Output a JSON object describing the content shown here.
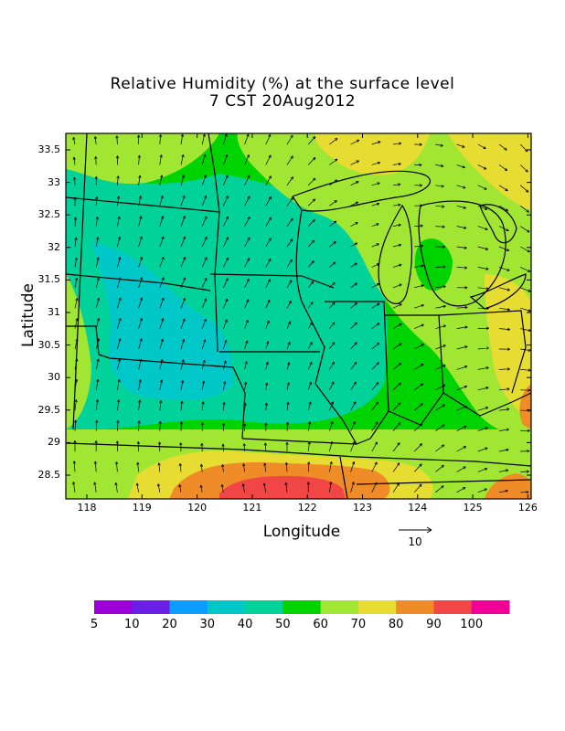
{
  "title": {
    "line1": "Relative Humidity (%) at the surface level",
    "line2": "7 CST 20Aug2012"
  },
  "axes": {
    "xlabel": "Longitude",
    "ylabel": "Latitude",
    "xticks": [
      "118",
      "119",
      "120",
      "121",
      "122",
      "123",
      "124",
      "125",
      "126"
    ],
    "yticks": [
      "33.5",
      "33",
      "32.5",
      "32",
      "31.5",
      "31",
      "30.5",
      "30",
      "29.5",
      "29",
      "28.5"
    ]
  },
  "vector_reference": {
    "label": "10"
  },
  "colorbar": {
    "labels": [
      "5",
      "10",
      "20",
      "30",
      "40",
      "50",
      "60",
      "70",
      "80",
      "90",
      "100"
    ],
    "colors": [
      "#9b00d8",
      "#6a1fe6",
      "#0a9cff",
      "#00c8c8",
      "#00d29a",
      "#00d400",
      "#a0e632",
      "#e6dc32",
      "#f08c28",
      "#f04646",
      "#f00096"
    ]
  },
  "field_colors": {
    "land_default": "#00d400",
    "moist": "#a0e632",
    "dryish": "#00d29a",
    "dry": "#00c8c8",
    "humid": "#e6dc32",
    "very_humid": "#f08c28",
    "saturated": "#f04646"
  },
  "wind": {
    "direction": "northwesterly-to-easterly flow",
    "arrow_color": "#000000"
  }
}
